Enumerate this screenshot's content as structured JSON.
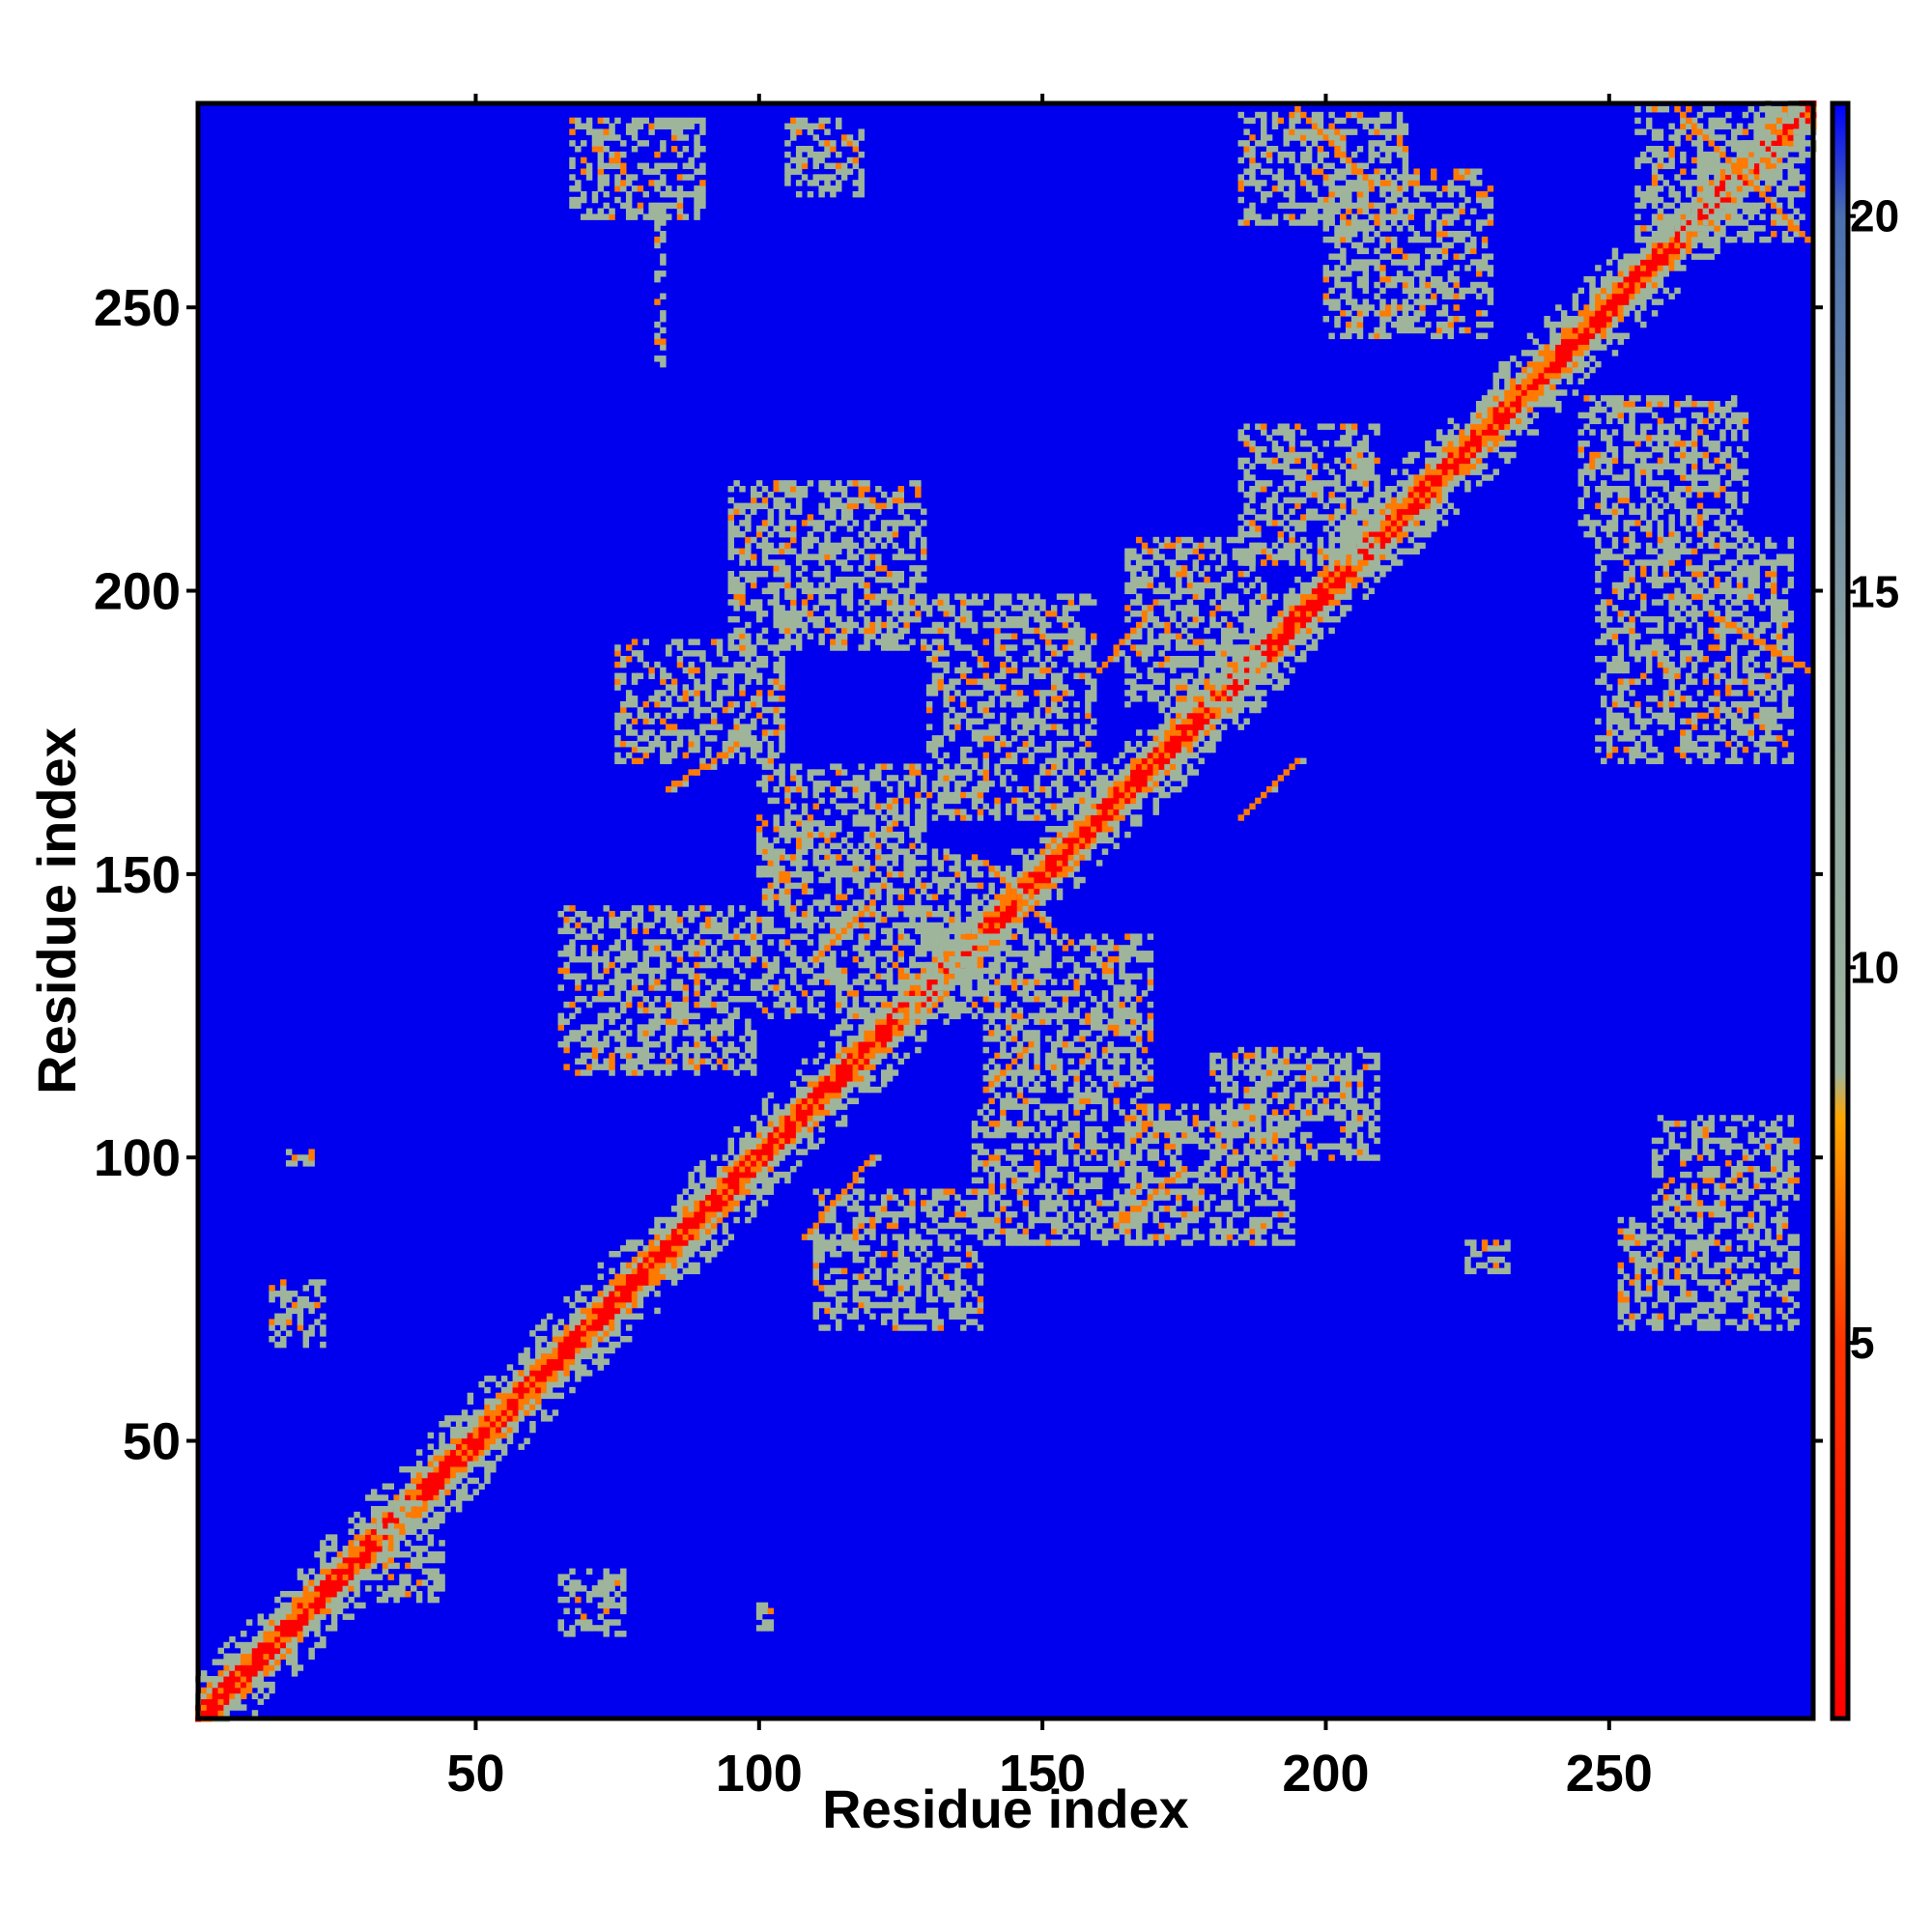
{
  "chart_data": {
    "type": "heatmap",
    "title": "",
    "xlabel": "Residue index",
    "ylabel": "Residue index",
    "xlim": [
      1,
      286
    ],
    "ylim": [
      1,
      286
    ],
    "n_residues": 286,
    "x_ticks": [
      50,
      100,
      150,
      200,
      250
    ],
    "y_ticks": [
      50,
      100,
      150,
      200,
      250
    ],
    "grid": false,
    "colorbar": {
      "range": [
        0,
        21.5
      ],
      "ticks": [
        5,
        10,
        15,
        20
      ],
      "stops": [
        {
          "value": 0,
          "color": "#ff0000"
        },
        {
          "value": 5,
          "color": "#ff3300"
        },
        {
          "value": 8,
          "color": "#ffa500"
        },
        {
          "value": 8.6,
          "color": "#9db59f"
        },
        {
          "value": 14,
          "color": "#8ba3a0"
        },
        {
          "value": 20,
          "color": "#4a6fb0"
        },
        {
          "value": 21.5,
          "color": "#0000ff"
        }
      ]
    },
    "background_color": "#0000ee",
    "diagonal_color": "#ff0000",
    "contact_color": "#ff7a00",
    "mid_color": "#9eb59b",
    "contact_regions": [
      {
        "x": 14,
        "y": 67,
        "w": 10,
        "h": 12
      },
      {
        "x": 17,
        "y": 99,
        "w": 5,
        "h": 3
      },
      {
        "x": 18,
        "y": 123,
        "w": 2,
        "h": 2
      },
      {
        "x": 65,
        "y": 16,
        "w": 12,
        "h": 12
      },
      {
        "x": 33,
        "y": 22,
        "w": 12,
        "h": 18
      },
      {
        "x": 100,
        "y": 16,
        "w": 3,
        "h": 6
      },
      {
        "x": 67,
        "y": 266,
        "w": 24,
        "h": 18
      },
      {
        "x": 105,
        "y": 270,
        "w": 14,
        "h": 14
      },
      {
        "x": 82,
        "y": 240,
        "w": 2,
        "h": 30
      },
      {
        "x": 95,
        "y": 190,
        "w": 35,
        "h": 30
      },
      {
        "x": 75,
        "y": 170,
        "w": 30,
        "h": 22
      },
      {
        "x": 65,
        "y": 115,
        "w": 35,
        "h": 30
      },
      {
        "x": 100,
        "y": 125,
        "w": 40,
        "h": 30
      },
      {
        "x": 110,
        "y": 70,
        "w": 30,
        "h": 25
      },
      {
        "x": 138,
        "y": 85,
        "w": 30,
        "h": 25
      },
      {
        "x": 100,
        "y": 150,
        "w": 30,
        "h": 20
      },
      {
        "x": 130,
        "y": 160,
        "w": 30,
        "h": 40
      },
      {
        "x": 140,
        "y": 110,
        "w": 30,
        "h": 30
      },
      {
        "x": 165,
        "y": 85,
        "w": 30,
        "h": 25
      },
      {
        "x": 180,
        "y": 100,
        "w": 30,
        "h": 20
      },
      {
        "x": 165,
        "y": 180,
        "w": 25,
        "h": 30
      },
      {
        "x": 185,
        "y": 205,
        "w": 25,
        "h": 25
      },
      {
        "x": 200,
        "y": 245,
        "w": 30,
        "h": 30
      },
      {
        "x": 185,
        "y": 265,
        "w": 30,
        "h": 20
      },
      {
        "x": 245,
        "y": 210,
        "w": 30,
        "h": 25
      },
      {
        "x": 248,
        "y": 170,
        "w": 35,
        "h": 40
      },
      {
        "x": 255,
        "y": 262,
        "w": 30,
        "h": 24
      },
      {
        "x": 252,
        "y": 70,
        "w": 32,
        "h": 20
      },
      {
        "x": 258,
        "y": 90,
        "w": 26,
        "h": 18
      },
      {
        "x": 225,
        "y": 80,
        "w": 8,
        "h": 6
      }
    ],
    "helix_streaks": [
      {
        "x0": 268,
        "y0": 196,
        "x1": 285,
        "y1": 186
      },
      {
        "x0": 262,
        "y0": 285,
        "x1": 285,
        "y1": 262
      },
      {
        "x0": 195,
        "y0": 285,
        "x1": 208,
        "y1": 272
      },
      {
        "x0": 84,
        "y0": 165,
        "x1": 95,
        "y1": 172
      },
      {
        "x0": 110,
        "y0": 135,
        "x1": 120,
        "y1": 145
      },
      {
        "x0": 140,
        "y0": 152,
        "x1": 152,
        "y1": 140
      },
      {
        "x0": 140,
        "y0": 112,
        "x1": 148,
        "y1": 120
      },
      {
        "x0": 163,
        "y0": 88,
        "x1": 175,
        "y1": 98
      },
      {
        "x0": 185,
        "y0": 160,
        "x1": 195,
        "y1": 170
      },
      {
        "x0": 160,
        "y0": 186,
        "x1": 170,
        "y1": 198
      },
      {
        "x0": 108,
        "y0": 86,
        "x1": 120,
        "y1": 100
      }
    ]
  }
}
